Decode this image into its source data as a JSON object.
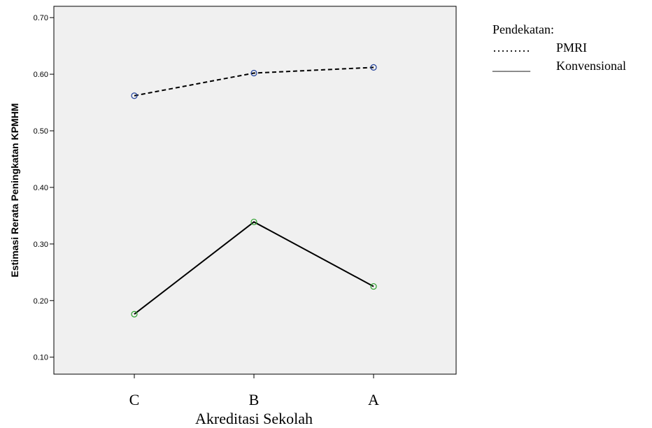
{
  "chart_data": {
    "type": "line",
    "categories": [
      "C",
      "B",
      "A"
    ],
    "xlabel": "Akreditasi Sekolah",
    "ylabel": "Estimasi Rerata Peningkatan KPMHM",
    "ylim": [
      0.07,
      0.72
    ],
    "yticks": [
      "0.10",
      "0.20",
      "0.30",
      "0.40",
      "0.50",
      "0.60",
      "0.70"
    ],
    "grid": false,
    "legend": {
      "placement": "top-right",
      "title": "Pendekatan:",
      "entries": [
        {
          "sample": "………",
          "label": "PMRI"
        },
        {
          "sample": "______",
          "label": "Konvensional"
        }
      ]
    },
    "series": [
      {
        "name": "PMRI",
        "values": [
          0.562,
          0.602,
          0.612
        ],
        "line_style": "dashed",
        "marker_color": "#1f3f99"
      },
      {
        "name": "Konvensional",
        "values": [
          0.176,
          0.339,
          0.225
        ],
        "line_style": "solid",
        "marker_color": "#2ca02c"
      }
    ],
    "plot_background": "#f0f0f0"
  }
}
